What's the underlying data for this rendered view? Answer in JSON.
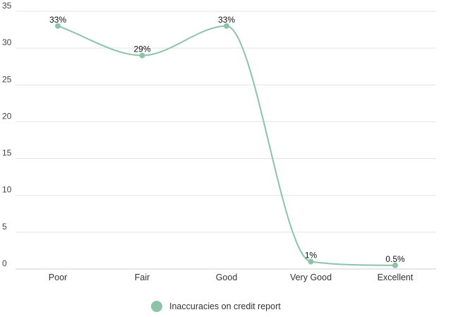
{
  "chart_data": {
    "type": "line",
    "smooth": true,
    "categories": [
      "Poor",
      "Fair",
      "Good",
      "Very Good",
      "Excellent"
    ],
    "series": [
      {
        "name": "Inaccuracies on credit report",
        "values": [
          33,
          29,
          33,
          1,
          0.5
        ],
        "data_labels": [
          "33%",
          "29%",
          "33%",
          "1%",
          "0.5%"
        ],
        "color": "#8cc4a7"
      }
    ],
    "title": "",
    "xlabel": "",
    "ylabel": "",
    "ylim": [
      0,
      35
    ],
    "yticks": [
      "0",
      "5",
      "10",
      "15",
      "20",
      "25",
      "30",
      "35"
    ],
    "grid": true,
    "legend": "bottom-center"
  }
}
